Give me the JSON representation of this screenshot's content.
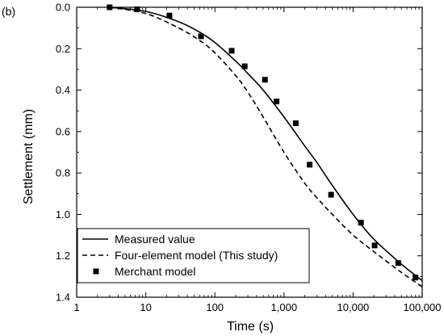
{
  "panel_label": "(b)",
  "chart_data": {
    "type": "line",
    "xlabel": "Time (s)",
    "ylabel": "Settlement (mm)",
    "x_scale": "log",
    "xlim": [
      1,
      100000
    ],
    "ylim": [
      0.0,
      1.4
    ],
    "y_inverted": true,
    "x_ticks": [
      1,
      10,
      100,
      1000,
      10000,
      100000
    ],
    "x_tick_labels": [
      "1",
      "10",
      "100",
      "1,000",
      "10,000",
      "100,000"
    ],
    "y_ticks": [
      0.0,
      0.2,
      0.4,
      0.6,
      0.8,
      1.0,
      1.2,
      1.4
    ],
    "y_tick_labels": [
      "0.0",
      "0.2",
      "0.4",
      "0.6",
      "0.8",
      "1.0",
      "1.2",
      "1.4"
    ],
    "grid": false,
    "legend_position": "bottom-left",
    "series": [
      {
        "name": "Measured value",
        "style": "solid-line",
        "color": "#000000",
        "x": [
          3,
          10,
          30,
          60,
          100,
          200,
          300,
          500,
          1000,
          2000,
          3000,
          5000,
          10000,
          20000,
          50000,
          100000
        ],
        "y": [
          0.0,
          0.02,
          0.07,
          0.12,
          0.17,
          0.26,
          0.32,
          0.4,
          0.53,
          0.67,
          0.75,
          0.86,
          1.0,
          1.12,
          1.24,
          1.32
        ]
      },
      {
        "name": "Four-element model (This study)",
        "style": "dashed-line",
        "color": "#000000",
        "x": [
          3,
          10,
          30,
          60,
          100,
          200,
          300,
          500,
          1000,
          2000,
          3000,
          5000,
          10000,
          20000,
          50000,
          100000
        ],
        "y": [
          0.0,
          0.03,
          0.1,
          0.16,
          0.22,
          0.33,
          0.41,
          0.53,
          0.7,
          0.85,
          0.92,
          1.0,
          1.1,
          1.18,
          1.28,
          1.35
        ]
      },
      {
        "name": "Merchant model",
        "style": "square-markers",
        "color": "#000000",
        "x": [
          3,
          7.5,
          22,
          63,
          175,
          270,
          530,
          780,
          1480,
          2350,
          4800,
          13000,
          20500,
          45000,
          80000
        ],
        "y": [
          0.0,
          0.01,
          0.04,
          0.14,
          0.21,
          0.285,
          0.35,
          0.455,
          0.56,
          0.76,
          0.905,
          1.04,
          1.15,
          1.235,
          1.305
        ]
      }
    ]
  }
}
